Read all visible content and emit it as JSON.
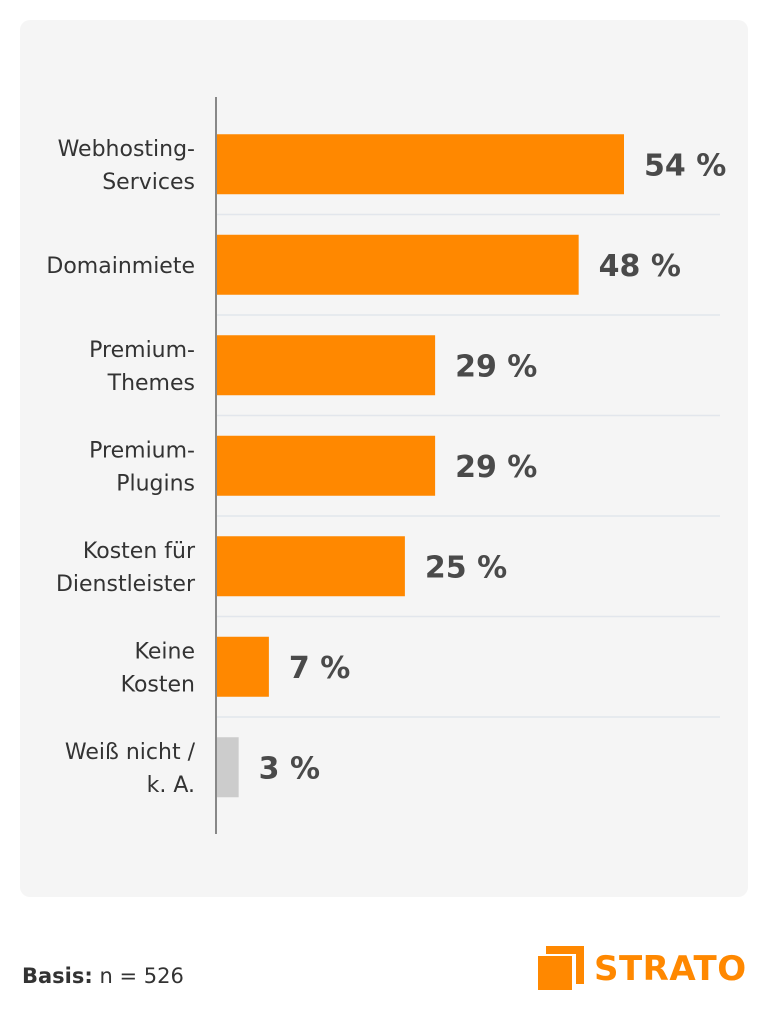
{
  "chart_data": {
    "type": "bar",
    "orientation": "horizontal",
    "categories": [
      [
        "Webhosting-",
        "Services"
      ],
      [
        "Domainmiete"
      ],
      [
        "Premium-",
        "Themes"
      ],
      [
        "Premium-",
        "Plugins"
      ],
      [
        "Kosten für",
        "Dienstleister"
      ],
      [
        "Keine",
        "Kosten"
      ],
      [
        "Weiß nicht /",
        "k. A."
      ]
    ],
    "values": [
      54,
      48,
      29,
      29,
      25,
      7,
      3
    ],
    "value_labels": [
      "54 %",
      "48 %",
      "29 %",
      "29 %",
      "25 %",
      "7 %",
      "3 %"
    ],
    "unit": "%",
    "xlim": [
      0,
      100
    ],
    "bar_colors": [
      "#ff8800",
      "#ff8800",
      "#ff8800",
      "#ff8800",
      "#ff8800",
      "#ff8800",
      "#cccccc"
    ],
    "grid": false,
    "title": "",
    "xlabel": "",
    "ylabel": ""
  },
  "footer": {
    "basis_label": "Basis:",
    "basis_value": "n = 526"
  },
  "brand": {
    "name": "STRATO",
    "color": "#ff8800"
  }
}
